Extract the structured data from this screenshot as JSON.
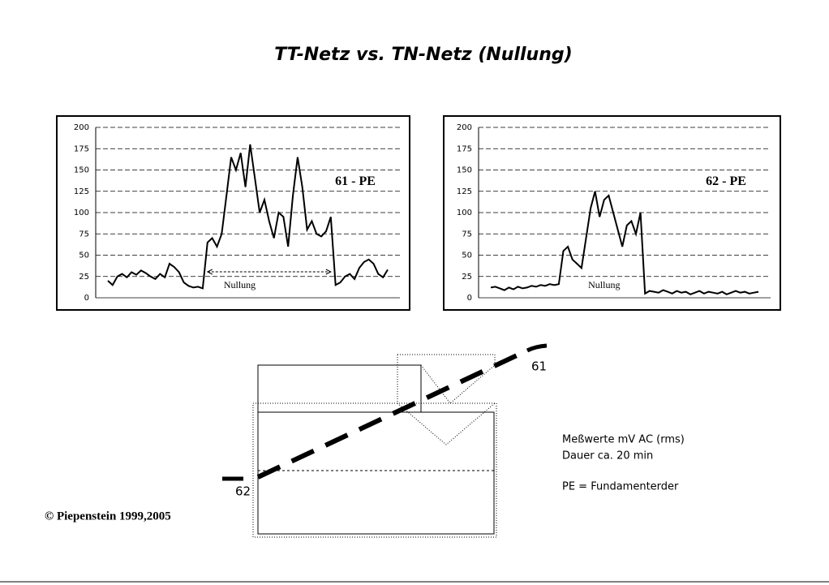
{
  "slide": {
    "title": "TT-Netz vs. TN-Netz (Nullung)",
    "diagram_labels": [
      "61",
      "62"
    ],
    "notes": [
      "Meßwerte mV AC (rms)",
      "Dauer ca. 20 min",
      "PE = Fundamenterder"
    ],
    "copyright": "© Piepenstein 1999,2005"
  },
  "chart_data": [
    {
      "type": "line",
      "label": "61 - PE",
      "annotation": "Nullung",
      "color": "#000000",
      "grid": true,
      "ylim": [
        0,
        200
      ],
      "yticks": [
        0,
        25,
        50,
        75,
        100,
        125,
        150,
        175,
        200
      ],
      "values": [
        20,
        15,
        25,
        28,
        24,
        30,
        27,
        32,
        29,
        25,
        22,
        28,
        24,
        40,
        36,
        30,
        18,
        14,
        12,
        13,
        11,
        65,
        70,
        60,
        75,
        120,
        165,
        150,
        170,
        130,
        180,
        140,
        100,
        115,
        90,
        70,
        100,
        95,
        60,
        120,
        165,
        130,
        80,
        90,
        75,
        72,
        78,
        95,
        15,
        18,
        25,
        28,
        22,
        35,
        42,
        45,
        40,
        28,
        24,
        33
      ]
    },
    {
      "type": "line",
      "label": "62 - PE",
      "annotation": "Nullung",
      "color": "#000000",
      "grid": true,
      "ylim": [
        0,
        200
      ],
      "yticks": [
        0,
        25,
        50,
        75,
        100,
        125,
        150,
        175,
        200
      ],
      "values": [
        12,
        13,
        11,
        9,
        12,
        10,
        13,
        11,
        12,
        14,
        13,
        15,
        14,
        16,
        15,
        16,
        55,
        60,
        45,
        40,
        35,
        70,
        105,
        125,
        95,
        115,
        120,
        100,
        80,
        60,
        85,
        90,
        75,
        100,
        5,
        8,
        7,
        6,
        9,
        7,
        5,
        8,
        6,
        7,
        4,
        6,
        8,
        5,
        7,
        6,
        5,
        7,
        4,
        6,
        8,
        6,
        7,
        5,
        6,
        7
      ]
    }
  ]
}
